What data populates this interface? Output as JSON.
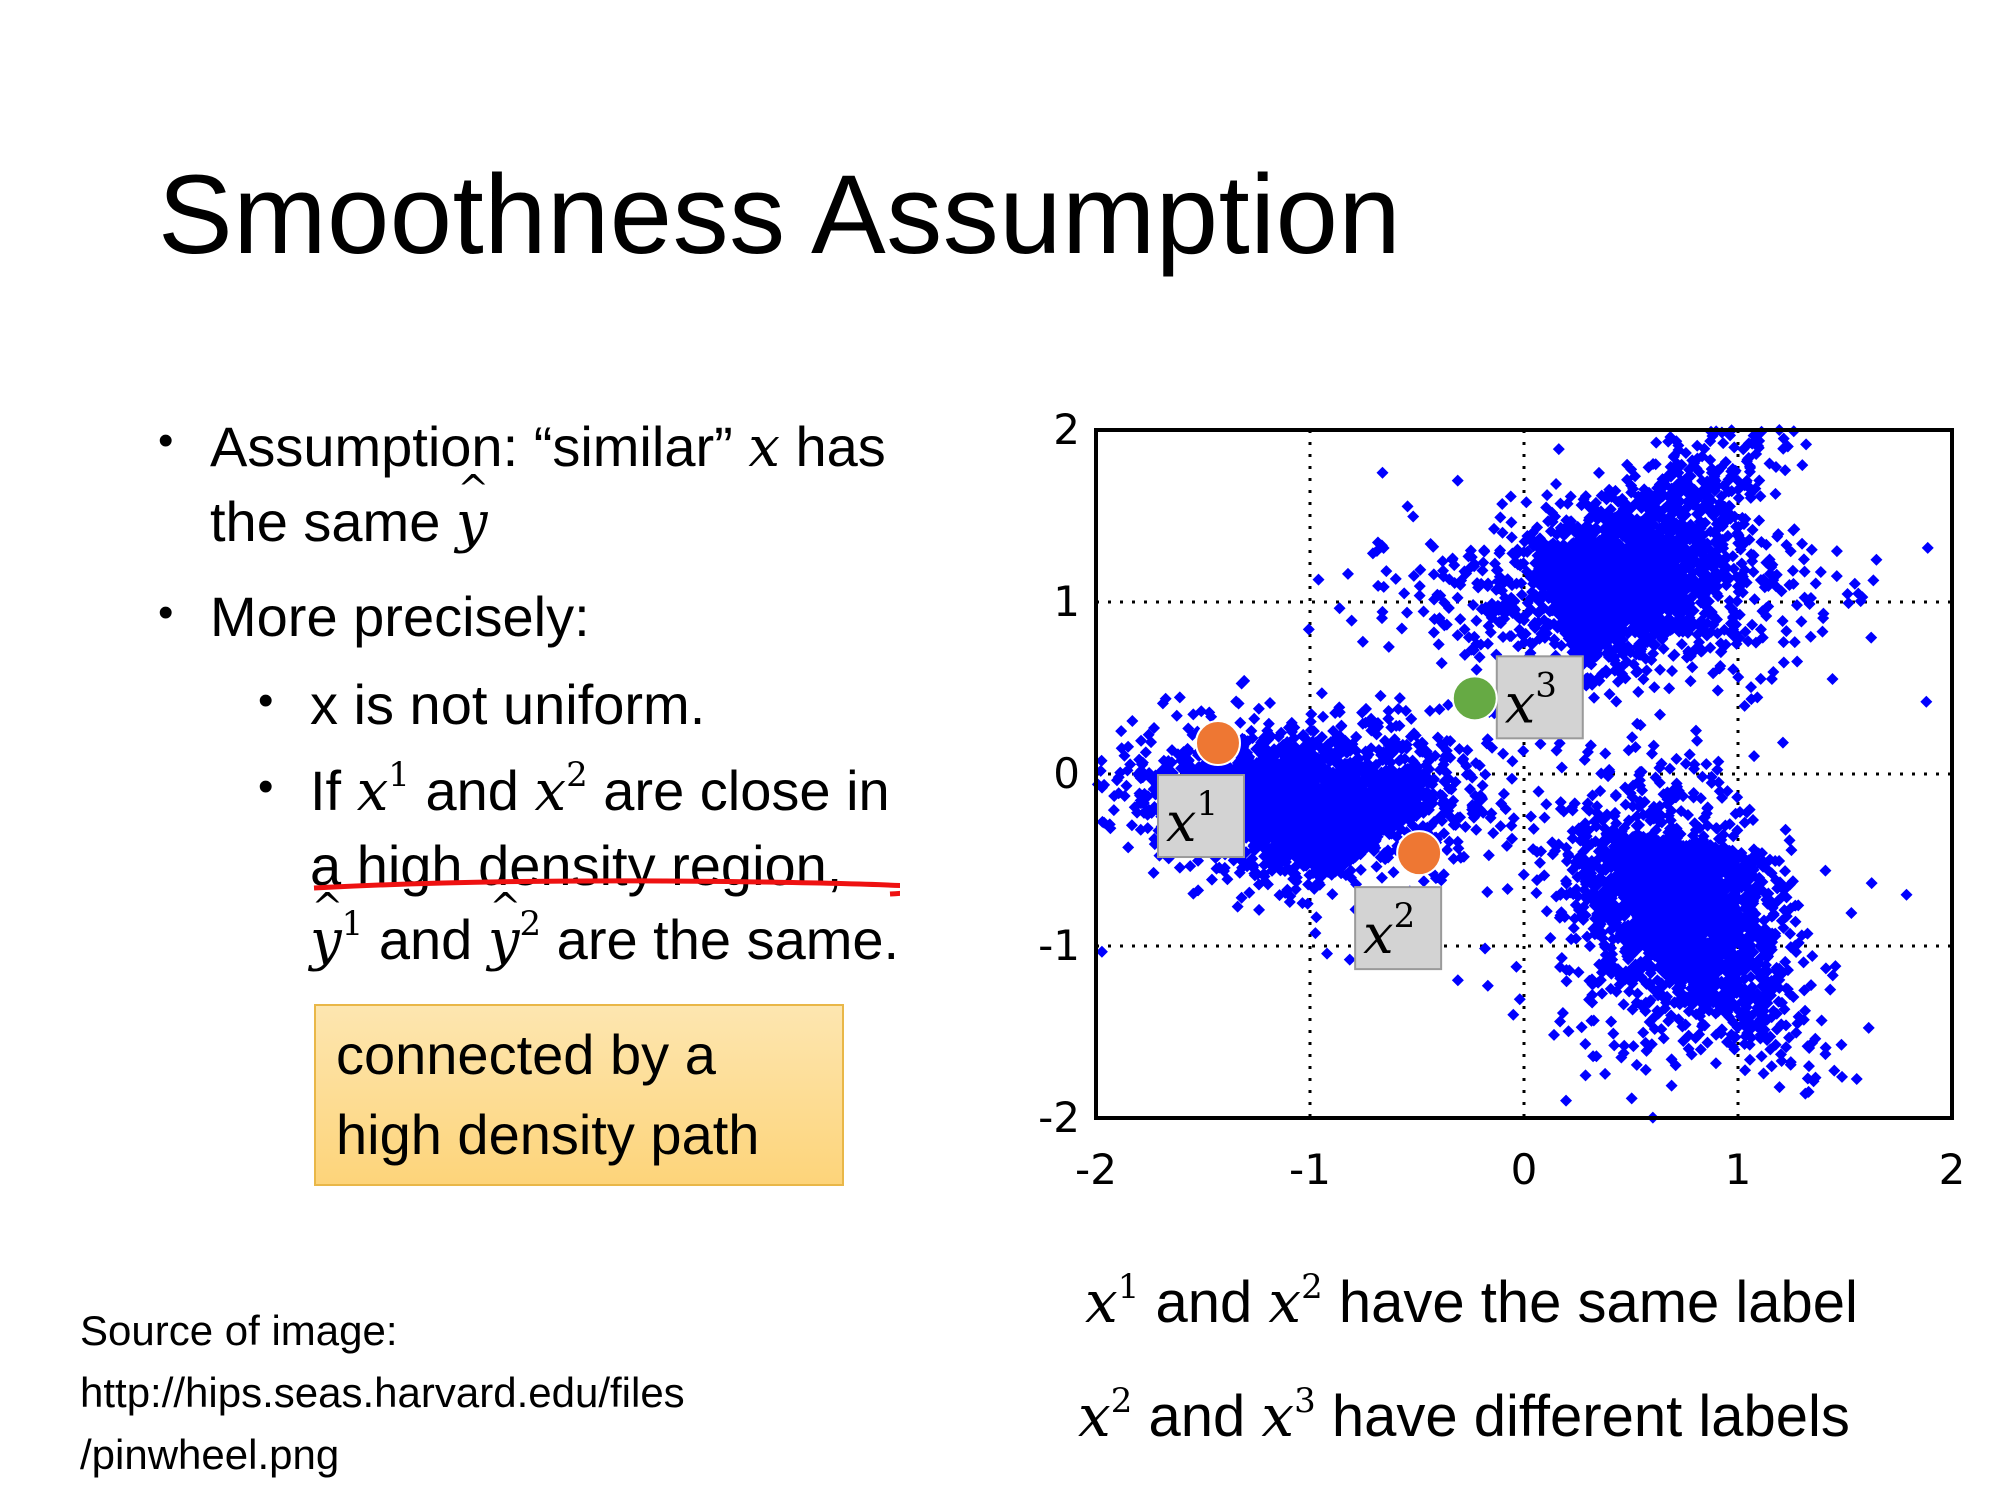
{
  "slide": {
    "title": "Smoothness Assumption",
    "bullets": {
      "b1_text_a": "Assumption: “similar” ",
      "b1_x": "x",
      "b1_text_b": " has",
      "b1_line2_a": "the same ",
      "b1_yhat": "y",
      "b2_text": "More precisely:",
      "sub1_text": "x is not uniform.",
      "sub2_if": "If ",
      "sub2_x": "x",
      "sup_1": "1",
      "sup_2": "2",
      "sup_3": "3",
      "sub2_and": " and ",
      "sub2_close": " are close in",
      "sub2_region": "a high density region,",
      "sub2_same": " are the same."
    },
    "callout": {
      "line1": "connected by a",
      "line2": "high density path"
    },
    "source": {
      "line1": "Source of image:",
      "line2": "http://hips.seas.harvard.edu/files",
      "line3": "/pinwheel.png"
    },
    "captions": {
      "same_label": " have the same label",
      "different_labels": " have different labels"
    },
    "colors": {
      "scatter": "#0000ff",
      "point_orange": "#ee7733",
      "point_green": "#66aa44",
      "underline": "#ee1111",
      "label_box": "#d3d3d3"
    }
  },
  "chart_data": {
    "type": "scatter",
    "xlim": [
      -2,
      2
    ],
    "ylim": [
      -2,
      2
    ],
    "xticks": [
      "-2",
      "-1",
      "0",
      "1",
      "2"
    ],
    "yticks": [
      "2",
      "1",
      "0",
      "-1",
      "-2"
    ],
    "grid": true,
    "highlighted_points": [
      {
        "name": "x1",
        "x": -1.43,
        "y": 0.18,
        "color": "#ee7733",
        "label_base": "x",
        "label_sup": "1"
      },
      {
        "name": "x2",
        "x": -0.49,
        "y": -0.46,
        "color": "#ee7733",
        "label_base": "x",
        "label_sup": "2"
      },
      {
        "name": "x3",
        "x": -0.23,
        "y": 0.44,
        "color": "#66aa44",
        "label_base": "x",
        "label_sup": "3"
      }
    ],
    "clusters": [
      {
        "name": "arm-top",
        "center": [
          0.4,
          1.05
        ],
        "spread": [
          0.55,
          0.28
        ],
        "points": 1500
      },
      {
        "name": "arm-left",
        "center": [
          -0.95,
          -0.1
        ],
        "spread": [
          0.45,
          0.28
        ],
        "points": 1500
      },
      {
        "name": "arm-bottom",
        "center": [
          0.65,
          -0.75
        ],
        "spread": [
          0.28,
          0.5
        ],
        "points": 1500
      }
    ]
  }
}
